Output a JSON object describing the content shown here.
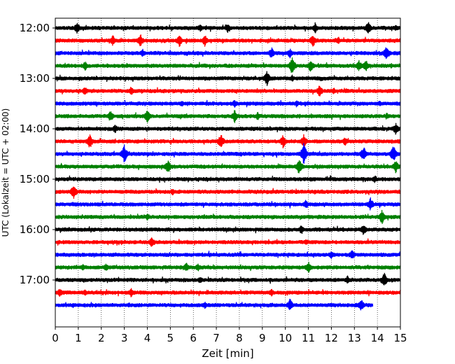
{
  "chart_data": {
    "type": "line",
    "subtype": "seismic-helicorder",
    "xlabel": "Zeit  [min]",
    "ylabel": "UTC (Lokalzeit = UTC + 02:00)",
    "xlim": [
      0,
      15
    ],
    "x_ticks": [
      "0",
      "1",
      "2",
      "3",
      "4",
      "5",
      "6",
      "7",
      "8",
      "9",
      "10",
      "11",
      "12",
      "13",
      "14",
      "15"
    ],
    "grid": "vertical-dotted",
    "time_labels": [
      {
        "label": "12:00",
        "trace_index": 0
      },
      {
        "label": "13:00",
        "trace_index": 4
      },
      {
        "label": "14:00",
        "trace_index": 8
      },
      {
        "label": "15:00",
        "trace_index": 12
      },
      {
        "label": "16:00",
        "trace_index": 16
      },
      {
        "label": "17:00",
        "trace_index": 20
      }
    ],
    "line_colors": [
      "#000000",
      "#ff0000",
      "#0000ff",
      "#008000"
    ],
    "traces": [
      {
        "start": "12:00",
        "color": "#000000",
        "end_min": 15,
        "events": [
          [
            0.95,
            9
          ],
          [
            6.3,
            6
          ],
          [
            7.5,
            7
          ],
          [
            11.3,
            8
          ],
          [
            13.6,
            10
          ],
          [
            14.8,
            5
          ]
        ]
      },
      {
        "start": "12:15",
        "color": "#ff0000",
        "end_min": 15,
        "events": [
          [
            2.5,
            8
          ],
          [
            3.7,
            10
          ],
          [
            5.4,
            9
          ],
          [
            6.5,
            9
          ],
          [
            11.2,
            10
          ],
          [
            12.3,
            6
          ]
        ]
      },
      {
        "start": "12:30",
        "color": "#0000ff",
        "end_min": 15,
        "events": [
          [
            3.8,
            6
          ],
          [
            9.4,
            9
          ],
          [
            10.2,
            7
          ],
          [
            14.4,
            12
          ]
        ]
      },
      {
        "start": "12:45",
        "color": "#008000",
        "end_min": 15,
        "events": [
          [
            1.3,
            7
          ],
          [
            10.3,
            14
          ],
          [
            11.1,
            10
          ],
          [
            13.2,
            9
          ],
          [
            13.5,
            9
          ]
        ]
      },
      {
        "start": "13:00",
        "color": "#000000",
        "end_min": 15,
        "events": [
          [
            9.2,
            11
          ],
          [
            10.3,
            5
          ]
        ]
      },
      {
        "start": "13:15",
        "color": "#ff0000",
        "end_min": 15,
        "events": [
          [
            1.3,
            7
          ],
          [
            3.3,
            7
          ],
          [
            11.5,
            10
          ],
          [
            12.1,
            5
          ]
        ]
      },
      {
        "start": "13:30",
        "color": "#0000ff",
        "end_min": 15,
        "events": [
          [
            5.5,
            5
          ],
          [
            7.8,
            6
          ],
          [
            10.5,
            5
          ],
          [
            14.1,
            4
          ]
        ]
      },
      {
        "start": "13:45",
        "color": "#008000",
        "end_min": 15,
        "events": [
          [
            2.4,
            9
          ],
          [
            4.0,
            10
          ],
          [
            7.8,
            10
          ],
          [
            8.8,
            6
          ],
          [
            14.4,
            5
          ]
        ]
      },
      {
        "start": "14:00",
        "color": "#000000",
        "end_min": 15,
        "events": [
          [
            2.6,
            7
          ],
          [
            14.8,
            9
          ]
        ]
      },
      {
        "start": "14:15",
        "color": "#ff0000",
        "end_min": 15,
        "events": [
          [
            1.5,
            12
          ],
          [
            7.2,
            12
          ],
          [
            9.9,
            10
          ],
          [
            10.8,
            10
          ],
          [
            12.6,
            7
          ]
        ]
      },
      {
        "start": "14:30",
        "color": "#0000ff",
        "end_min": 15,
        "events": [
          [
            3.0,
            14
          ],
          [
            10.8,
            16
          ],
          [
            13.4,
            12
          ],
          [
            14.7,
            13
          ]
        ]
      },
      {
        "start": "14:45",
        "color": "#008000",
        "end_min": 15,
        "events": [
          [
            4.9,
            11
          ],
          [
            10.6,
            12
          ],
          [
            14.8,
            10
          ]
        ]
      },
      {
        "start": "15:00",
        "color": "#000000",
        "end_min": 15,
        "events": [
          [
            13.9,
            6
          ]
        ]
      },
      {
        "start": "15:15",
        "color": "#ff0000",
        "end_min": 15,
        "events": [
          [
            0.8,
            11
          ],
          [
            5.1,
            5
          ],
          [
            12.7,
            4
          ]
        ]
      },
      {
        "start": "15:30",
        "color": "#0000ff",
        "end_min": 15,
        "events": [
          [
            10.9,
            7
          ],
          [
            13.7,
            10
          ]
        ]
      },
      {
        "start": "15:45",
        "color": "#008000",
        "end_min": 15,
        "events": [
          [
            4.0,
            5
          ],
          [
            14.2,
            11
          ]
        ]
      },
      {
        "start": "16:00",
        "color": "#000000",
        "end_min": 15,
        "events": [
          [
            10.7,
            7
          ],
          [
            13.4,
            9
          ]
        ]
      },
      {
        "start": "16:15",
        "color": "#ff0000",
        "end_min": 15,
        "events": [
          [
            4.2,
            8
          ],
          [
            10.9,
            5
          ]
        ]
      },
      {
        "start": "16:30",
        "color": "#0000ff",
        "end_min": 15,
        "events": [
          [
            12.0,
            6
          ],
          [
            12.9,
            8
          ]
        ]
      },
      {
        "start": "16:45",
        "color": "#008000",
        "end_min": 15,
        "events": [
          [
            1.2,
            5
          ],
          [
            2.2,
            6
          ],
          [
            5.7,
            7
          ],
          [
            6.2,
            6
          ],
          [
            11.0,
            9
          ]
        ]
      },
      {
        "start": "17:00",
        "color": "#000000",
        "end_min": 15,
        "events": [
          [
            6.3,
            6
          ],
          [
            12.7,
            7
          ],
          [
            14.3,
            11
          ]
        ]
      },
      {
        "start": "17:15",
        "color": "#ff0000",
        "end_min": 15,
        "events": [
          [
            0.2,
            7
          ],
          [
            1.3,
            5
          ],
          [
            3.3,
            7
          ],
          [
            9.4,
            6
          ]
        ]
      },
      {
        "start": "17:30",
        "color": "#0000ff",
        "end_min": 13.8,
        "events": [
          [
            3.2,
            4
          ],
          [
            6.5,
            5
          ],
          [
            10.2,
            10
          ],
          [
            13.3,
            9
          ]
        ]
      }
    ]
  }
}
